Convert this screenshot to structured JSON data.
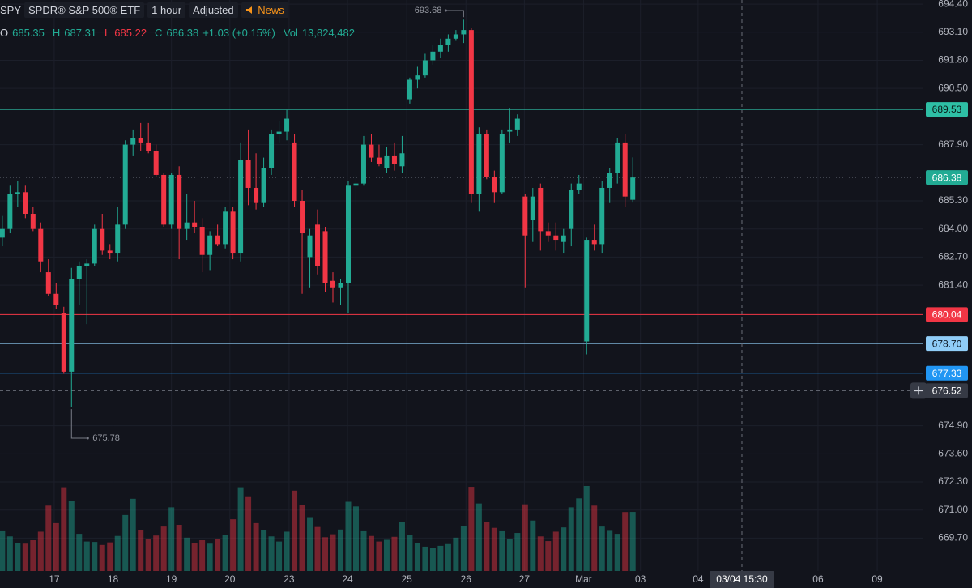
{
  "chart_data": {
    "type": "candlestick",
    "symbol": "SPY",
    "description": "SPDR® S&P 500® ETF",
    "interval": "1 hour",
    "adjustment": "Adjusted",
    "news": "News",
    "legend": {
      "o_label": "O",
      "open": 685.35,
      "h_label": "H",
      "high": 687.31,
      "l_label": "L",
      "low": 685.22,
      "c_label": "C",
      "close": 686.38,
      "change": "+1.03 (+0.15%)",
      "vol_label": "Vol",
      "volume": "13,824,482"
    },
    "up_color": "#22ab94",
    "down_color": "#f23645",
    "candles": {
      "open": [
        683.6,
        684.0,
        685.6,
        685.7,
        684.7,
        684.0,
        682.0,
        681.0,
        680.1,
        677.4,
        681.7,
        682.3,
        682.4,
        684.0,
        683.0,
        682.9,
        684.2,
        687.9,
        688.2,
        688.0,
        687.6,
        686.5,
        684.2,
        686.5,
        684.0,
        684.3,
        684.1,
        682.8,
        683.7,
        683.3,
        684.8,
        682.9,
        687.2,
        685.9,
        685.2,
        686.8,
        688.4,
        688.5,
        688.0,
        685.3,
        682.7,
        684.2,
        683.9,
        681.6,
        681.3,
        681.5,
        686.0,
        686.1,
        687.9,
        687.3,
        686.8,
        687.4,
        686.9,
        690.0,
        690.9,
        691.1,
        691.8,
        692.2,
        692.5,
        692.8,
        693.0,
        693.2,
        685.6,
        688.4,
        686.4,
        685.7,
        688.5,
        688.6,
        685.5,
        684.4,
        685.9,
        683.9,
        683.7,
        683.4,
        684.0,
        685.8,
        678.8,
        683.5,
        683.3,
        685.9,
        686.6,
        688.0,
        685.35
      ],
      "high": [
        684.6,
        686.0,
        686.2,
        686.0,
        685.0,
        684.3,
        682.6,
        681.5,
        680.4,
        682.2,
        682.5,
        682.6,
        684.2,
        684.7,
        683.3,
        685.0,
        688.1,
        688.6,
        688.9,
        688.9,
        687.9,
        686.6,
        686.6,
        686.9,
        685.6,
        685.3,
        684.5,
        683.9,
        684.2,
        685.0,
        685.0,
        688.0,
        688.6,
        687.5,
        687.3,
        688.6,
        689.0,
        689.5,
        688.4,
        685.8,
        684.0,
        684.9,
        684.1,
        682.0,
        681.7,
        686.2,
        686.5,
        688.3,
        688.4,
        687.9,
        687.8,
        688.0,
        688.3,
        691.0,
        691.5,
        692.1,
        692.5,
        692.8,
        693.0,
        693.2,
        693.68,
        693.3,
        688.7,
        688.6,
        686.7,
        688.6,
        689.6,
        689.3,
        685.6,
        685.9,
        686.1,
        684.3,
        684.3,
        684.0,
        686.1,
        686.5,
        683.6,
        684.2,
        686.2,
        686.8,
        688.2,
        688.4,
        687.31
      ],
      "low": [
        683.2,
        683.8,
        685.0,
        684.5,
        683.9,
        682.0,
        680.9,
        680.3,
        677.3,
        675.78,
        680.5,
        679.6,
        682.3,
        682.8,
        682.6,
        682.5,
        684.0,
        687.4,
        687.6,
        687.5,
        686.4,
        684.1,
        684.0,
        682.6,
        683.5,
        683.8,
        682.0,
        682.1,
        683.2,
        683.1,
        682.6,
        682.5,
        685.1,
        684.9,
        685.0,
        686.5,
        688.0,
        688.1,
        685.0,
        681.0,
        681.3,
        681.9,
        681.1,
        680.6,
        680.5,
        680.1,
        685.1,
        686.0,
        687.1,
        686.9,
        686.6,
        686.7,
        686.6,
        689.8,
        690.5,
        691.0,
        691.6,
        691.9,
        692.2,
        692.7,
        692.6,
        685.2,
        684.8,
        686.3,
        685.2,
        685.6,
        688.0,
        688.3,
        681.3,
        683.4,
        683.0,
        683.4,
        683.0,
        682.9,
        683.2,
        685.6,
        678.2,
        683.0,
        682.9,
        685.2,
        686.1,
        685.0,
        685.22
      ],
      "close": [
        684.0,
        685.6,
        685.7,
        684.7,
        684.0,
        682.5,
        681.0,
        680.5,
        677.4,
        681.7,
        682.3,
        682.4,
        684.0,
        683.0,
        682.9,
        684.2,
        687.9,
        688.2,
        688.0,
        687.6,
        686.5,
        684.2,
        686.5,
        684.0,
        684.3,
        684.1,
        682.8,
        683.7,
        683.3,
        684.8,
        682.9,
        687.2,
        685.9,
        685.2,
        686.8,
        688.4,
        688.5,
        689.1,
        685.3,
        683.8,
        683.7,
        682.3,
        681.5,
        681.3,
        681.5,
        686.0,
        686.1,
        687.9,
        687.3,
        687.0,
        687.4,
        687.0,
        687.5,
        690.9,
        691.1,
        691.8,
        692.2,
        692.5,
        692.8,
        693.0,
        693.2,
        685.6,
        688.4,
        686.4,
        685.7,
        688.4,
        688.6,
        689.1,
        683.7,
        685.5,
        683.9,
        683.7,
        683.5,
        683.7,
        685.8,
        686.1,
        683.5,
        683.3,
        685.9,
        686.6,
        688.0,
        685.5,
        686.38
      ],
      "volume": [
        9300000,
        8100000,
        6500000,
        6400000,
        7200000,
        9200000,
        15300000,
        11200000,
        19600000,
        16400000,
        8700000,
        6900000,
        6800000,
        6100000,
        6700000,
        8200000,
        13100000,
        16900000,
        9600000,
        7400000,
        8300000,
        10400000,
        14900000,
        10800000,
        7800000,
        6600000,
        7200000,
        6400000,
        7500000,
        8400000,
        12100000,
        19600000,
        17300000,
        11200000,
        9500000,
        8100000,
        6900000,
        9200000,
        18800000,
        15400000,
        12600000,
        10300000,
        7900000,
        8600000,
        9700000,
        16200000,
        15100000,
        9300000,
        8200000,
        6900000,
        7300000,
        8000000,
        11400000,
        8500000,
        6600000,
        5700000,
        5400000,
        5900000,
        6300000,
        7800000,
        10600000,
        19700000,
        15800000,
        11400000,
        10100000,
        9300000,
        7500000,
        8900000,
        15600000,
        11800000,
        8100000,
        7000000,
        9200000,
        10200000,
        14900000,
        17000000,
        19900000,
        15300000,
        10400000,
        9400000,
        8700000,
        13800000,
        13824482
      ]
    },
    "xlim": [
      -0.3,
      119.8
    ],
    "xticks": [
      {
        "value": 6.75,
        "label": "17"
      },
      {
        "value": 14.4,
        "label": "18"
      },
      {
        "value": 22,
        "label": "19"
      },
      {
        "value": 29.6,
        "label": "20"
      },
      {
        "value": 37.3,
        "label": "23"
      },
      {
        "value": 44.9,
        "label": "24"
      },
      {
        "value": 52.6,
        "label": "25"
      },
      {
        "value": 60.3,
        "label": "26"
      },
      {
        "value": 67.9,
        "label": "27"
      },
      {
        "value": 75.6,
        "label": "Mar"
      },
      {
        "value": 83,
        "label": "03"
      },
      {
        "value": 90.5,
        "label": "04"
      },
      {
        "value": 106.1,
        "label": "06"
      },
      {
        "value": 113.8,
        "label": "09"
      }
    ],
    "ylim": [
      668.18,
      694.59
    ],
    "yticks": [
      {
        "value": 694.4,
        "label": "694.40"
      },
      {
        "value": 693.1,
        "label": "693.10"
      },
      {
        "value": 691.8,
        "label": "691.80"
      },
      {
        "value": 690.5,
        "label": "690.50"
      },
      {
        "value": 687.9,
        "label": "687.90"
      },
      {
        "value": 685.3,
        "label": "685.30"
      },
      {
        "value": 684,
        "label": "684.00"
      },
      {
        "value": 682.7,
        "label": "682.70"
      },
      {
        "value": 681.4,
        "label": "681.40"
      },
      {
        "value": 674.9,
        "label": "674.90"
      },
      {
        "value": 673.6,
        "label": "673.60"
      },
      {
        "value": 672.3,
        "label": "672.30"
      },
      {
        "value": 671,
        "label": "671.00"
      },
      {
        "value": 669.7,
        "label": "669.70"
      }
    ],
    "grid": true,
    "price_lines": [
      {
        "value": 689.53,
        "color": "#2ebfa5",
        "text_color": "#0b1a17",
        "style": "solid"
      },
      {
        "value": 686.38,
        "color": "#22ab94",
        "text_color": "#ffffff",
        "style": "dotted"
      },
      {
        "value": 680.04,
        "color": "#f23645",
        "text_color": "#ffffff",
        "style": "solid"
      },
      {
        "value": {
          "value": 678.7,
          "label": "678.70"
        },
        "color": "#90cdf7",
        "text_color": "#0b1520",
        "style": "solid"
      },
      {
        "value": 677.33,
        "color": "#2196f3",
        "text_color": "#ffffff",
        "style": "solid"
      }
    ],
    "crosshair": {
      "x": 96.2,
      "x_label": "03/04 15:30",
      "y": 676.52
    },
    "high_marker": 693.68,
    "low_marker": 675.78
  }
}
